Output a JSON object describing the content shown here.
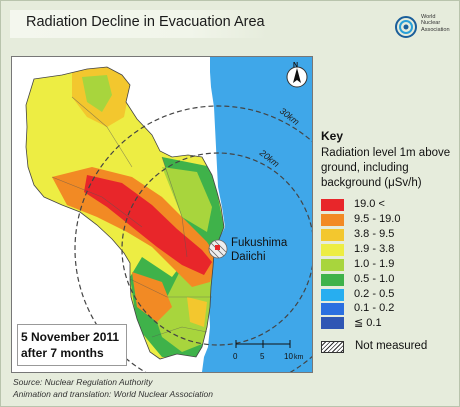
{
  "title": "Radiation Decline in Evacuation Area",
  "logo": {
    "line1": "World",
    "line2": "Nuclear",
    "line3": "Association"
  },
  "map": {
    "plant_label_line1": "Fukushima",
    "plant_label_line2": "Daiichi",
    "ring_labels": [
      "30km",
      "20km"
    ],
    "north_label": "N",
    "scale_labels": [
      "0",
      "5",
      "10",
      "km"
    ],
    "date_line1": "5 November 2011",
    "date_line2": "after 7 months",
    "colors": {
      "sea": "#3fa7e9",
      "land": "#ffffff",
      "frame": "#777777"
    }
  },
  "key": {
    "title": "Key",
    "description": "Radiation level 1m above ground, including background (μSv/h)",
    "items": [
      {
        "label": "19.0 <",
        "color": "#e8262a"
      },
      {
        "label": "9.5 - 19.0",
        "color": "#f28a24"
      },
      {
        "label": "3.8 - 9.5",
        "color": "#f3c72e"
      },
      {
        "label": "1.9 - 3.8",
        "color": "#eded43"
      },
      {
        "label": "1.0 - 1.9",
        "color": "#a8d53d"
      },
      {
        "label": "0.5 - 1.0",
        "color": "#3fb24a"
      },
      {
        "label": "0.2 - 0.5",
        "color": "#27aef0"
      },
      {
        "label": "0.1 - 0.2",
        "color": "#2b6fe0"
      },
      {
        "label": "≦ 0.1",
        "color": "#2f56b4"
      }
    ],
    "not_measured": "Not measured"
  },
  "source": {
    "line1": "Source: Nuclear Regulation Authority",
    "line2": "Animation and translation: World Nuclear Association"
  }
}
